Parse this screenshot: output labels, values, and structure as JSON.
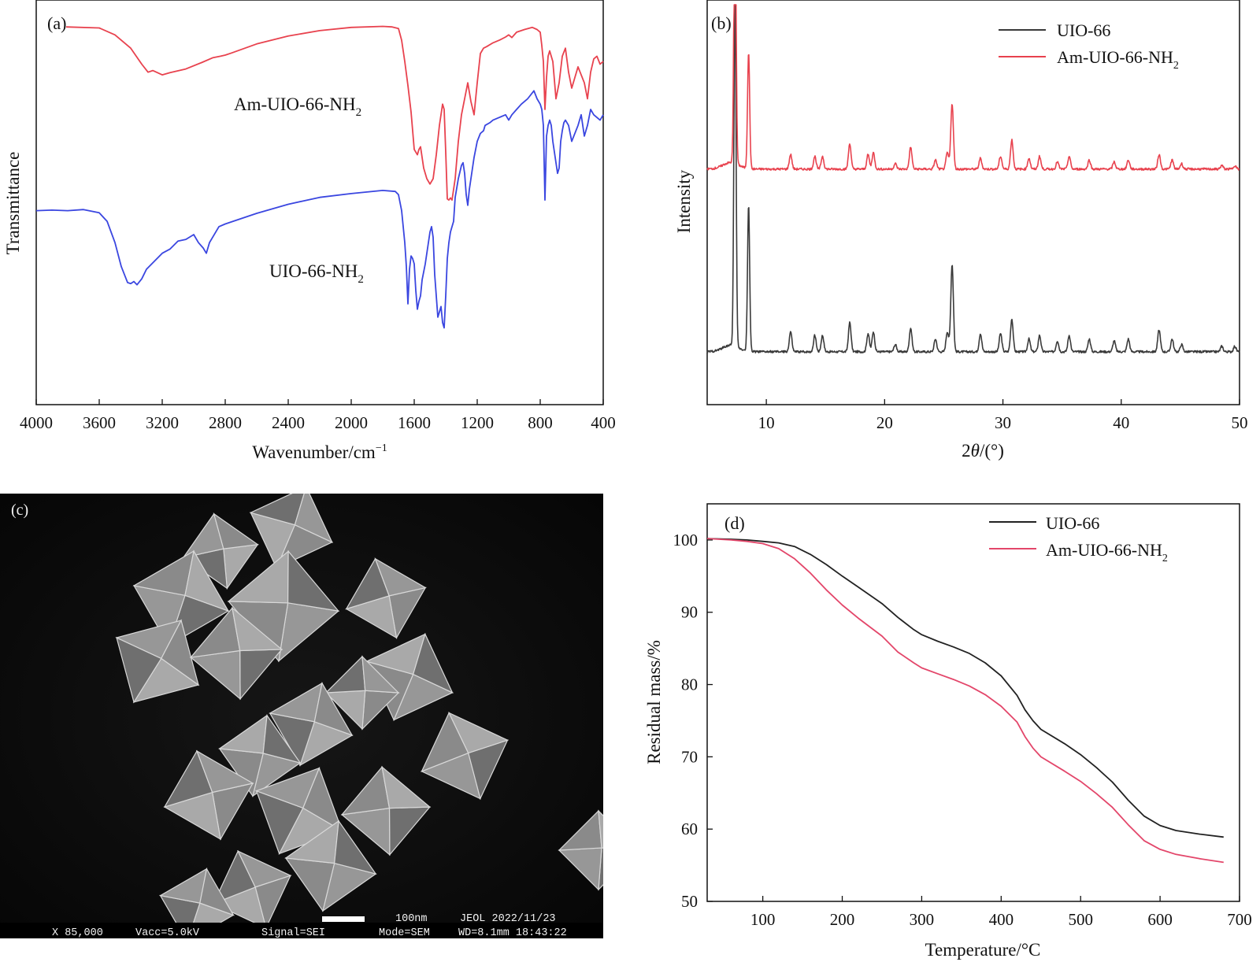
{
  "chart_data": [
    {
      "panel": "(a)",
      "type": "line",
      "xlabel": "Wavenumber/cm",
      "xlabel_sup": "−1",
      "ylabel": "Transmittance",
      "xlim": [
        4000,
        400
      ],
      "xticks": [
        "4000",
        "3600",
        "3200",
        "2800",
        "2400",
        "2000",
        "1600",
        "1200",
        "800",
        "400"
      ],
      "y_ticks_shown": false,
      "series": [
        {
          "name": "Am-UIO-66-NH",
          "name_sub": "2",
          "color": "#e8424e",
          "x": [
            3810,
            3600,
            3500,
            3400,
            3330,
            3290,
            3260,
            3230,
            3200,
            3150,
            3050,
            2950,
            2880,
            2830,
            2800,
            2760,
            2600,
            2400,
            2200,
            2000,
            1800,
            1740,
            1700,
            1680,
            1660,
            1640,
            1620,
            1610,
            1600,
            1590,
            1580,
            1570,
            1560,
            1540,
            1520,
            1500,
            1480,
            1460,
            1440,
            1430,
            1420,
            1410,
            1400,
            1390,
            1380,
            1370,
            1360,
            1350,
            1340,
            1320,
            1300,
            1280,
            1260,
            1240,
            1220,
            1200,
            1180,
            1160,
            1140,
            1100,
            1060,
            1020,
            1000,
            980,
            950,
            900,
            850,
            820,
            800,
            790,
            780,
            770,
            760,
            750,
            740,
            730,
            720,
            700,
            680,
            660,
            640,
            620,
            600,
            560,
            520,
            500,
            480,
            460,
            440,
            420,
            400
          ],
          "y": [
            98.5,
            98.3,
            97,
            94.5,
            91.5,
            90,
            90.3,
            89.9,
            89.5,
            89.9,
            90.6,
            91.8,
            92.7,
            93,
            93.2,
            93.6,
            95.3,
            96.8,
            97.8,
            98.4,
            98.6,
            98.5,
            98.2,
            96,
            92,
            87.5,
            82.5,
            79,
            75.5,
            75,
            74.5,
            75.5,
            76,
            72,
            70,
            69,
            70,
            74.5,
            80,
            82,
            84,
            83,
            75,
            66.2,
            66,
            66.4,
            66,
            68,
            70,
            77,
            82,
            85,
            88,
            84.5,
            82,
            88,
            93.5,
            94.5,
            94.8,
            95.5,
            96,
            96.6,
            97,
            96.5,
            97.5,
            98,
            98.4,
            98,
            97.5,
            95,
            92,
            83,
            89,
            93,
            94,
            93,
            92,
            85,
            88,
            93,
            94.5,
            90,
            87,
            91,
            88,
            85,
            90,
            92.5,
            93,
            91.5,
            92
          ],
          "labels": {
            "name": "Am-UIO-66-NH",
            "sub": "2"
          }
        },
        {
          "name": "UIO-66-NH",
          "name_sub": "2",
          "color": "#3a46e0",
          "x": [
            4000,
            3900,
            3800,
            3700,
            3600,
            3550,
            3500,
            3460,
            3420,
            3400,
            3380,
            3360,
            3330,
            3300,
            3250,
            3200,
            3150,
            3100,
            3050,
            3000,
            2970,
            2940,
            2920,
            2900,
            2880,
            2860,
            2840,
            2800,
            2600,
            2400,
            2200,
            2000,
            1800,
            1720,
            1700,
            1680,
            1660,
            1650,
            1640,
            1630,
            1620,
            1610,
            1600,
            1590,
            1580,
            1570,
            1560,
            1550,
            1530,
            1510,
            1500,
            1490,
            1480,
            1470,
            1450,
            1440,
            1430,
            1420,
            1410,
            1400,
            1390,
            1380,
            1370,
            1360,
            1350,
            1340,
            1320,
            1300,
            1290,
            1280,
            1270,
            1260,
            1250,
            1240,
            1220,
            1200,
            1180,
            1160,
            1150,
            1120,
            1100,
            1060,
            1020,
            1000,
            980,
            950,
            920,
            880,
            840,
            820,
            800,
            790,
            780,
            770,
            760,
            750,
            740,
            730,
            720,
            700,
            690,
            680,
            670,
            660,
            650,
            640,
            620,
            600,
            560,
            540,
            520,
            500,
            480,
            460,
            440,
            420,
            400
          ],
          "y": [
            64,
            64.1,
            64,
            64.2,
            63.6,
            62,
            58,
            53.5,
            50.5,
            50.3,
            50.7,
            50.1,
            51.2,
            53,
            54.5,
            56,
            56.8,
            58.3,
            58.6,
            59.5,
            58,
            57,
            56,
            58,
            59,
            60,
            61,
            61.5,
            63.5,
            65.2,
            66.5,
            67.2,
            67.8,
            67.6,
            67,
            64,
            58,
            53.5,
            46.5,
            53,
            55.5,
            55,
            54,
            49,
            45.5,
            47,
            48,
            51,
            54,
            58,
            60,
            61,
            59,
            52,
            44,
            45,
            46,
            43,
            42,
            48,
            55,
            58,
            60,
            61,
            62,
            66.5,
            70,
            72.5,
            73,
            71,
            67,
            65,
            68,
            70,
            74,
            77,
            78.5,
            79,
            80,
            80.5,
            81,
            81.5,
            82,
            81,
            82,
            83,
            84,
            85,
            86.5,
            85,
            84,
            83,
            80,
            66,
            78,
            80,
            81,
            80,
            77,
            73,
            71,
            72,
            77,
            79,
            80.5,
            81,
            80,
            77,
            80,
            82,
            78,
            80,
            83,
            82,
            81.5,
            81,
            82
          ],
          "labels": {
            "name": "UIO-66-NH",
            "sub": "2"
          }
        }
      ]
    },
    {
      "panel": "(b)",
      "type": "line",
      "xlabel_parts": [
        "2",
        "θ",
        "/(°)"
      ],
      "ylabel": "Intensity",
      "xlim": [
        5,
        50
      ],
      "xticks": [
        "10",
        "20",
        "30",
        "40",
        "50"
      ],
      "y_ticks_shown": false,
      "legend_position": "top-right",
      "peak_positions": [
        7.35,
        8.5,
        12.05,
        14.1,
        14.75,
        17.05,
        18.6,
        19.05,
        20.9,
        22.2,
        24.3,
        25.3,
        25.7,
        28.1,
        29.8,
        30.75,
        32.2,
        33.1,
        34.6,
        35.6,
        37.3,
        39.4,
        40.6,
        43.2,
        44.3,
        45.1,
        48.5,
        49.6
      ],
      "series": [
        {
          "name": "UIO-66",
          "color": "#3a3a3a",
          "baseline": 5,
          "peak_heights": [
            96,
            40,
            5.5,
            4.5,
            4.5,
            8,
            5,
            5.5,
            2,
            6.5,
            3.5,
            5.5,
            24,
            5,
            5,
            9,
            3.5,
            4.5,
            3,
            4.5,
            3.5,
            3,
            3.5,
            6,
            3.5,
            2,
            1.5,
            1.5
          ]
        },
        {
          "name": "Am-UIO-66-NH",
          "name_sub": "2",
          "color": "#e8424e",
          "baseline": 55,
          "peak_heights": [
            76,
            32,
            4,
            3.5,
            3.5,
            7,
            4,
            4.5,
            1.5,
            6,
            2.5,
            4.5,
            18,
            3,
            3.5,
            8,
            3,
            3.5,
            2,
            3.5,
            2.5,
            2,
            2.5,
            4,
            2.5,
            1.5,
            1,
            1
          ]
        }
      ]
    },
    {
      "panel": "(d)",
      "type": "line",
      "xlabel": "Temperature/°C",
      "ylabel": "Residual mass/%",
      "xlim": [
        30,
        700
      ],
      "ylim": [
        50,
        105
      ],
      "xticks": [
        100,
        200,
        300,
        400,
        500,
        600,
        700
      ],
      "yticks": [
        50,
        60,
        70,
        80,
        90,
        100
      ],
      "legend_position": "top-right",
      "series": [
        {
          "name": "UIO-66",
          "color": "#222222",
          "x": [
            30,
            60,
            80,
            100,
            120,
            140,
            160,
            180,
            200,
            220,
            250,
            270,
            290,
            300,
            320,
            340,
            360,
            380,
            400,
            420,
            430,
            440,
            450,
            480,
            500,
            520,
            540,
            560,
            580,
            600,
            620,
            650,
            680
          ],
          "y": [
            100.2,
            100.1,
            100,
            99.8,
            99.6,
            99.1,
            98,
            96.6,
            95,
            93.5,
            91.2,
            89.3,
            87.6,
            86.9,
            86,
            85.2,
            84.3,
            83,
            81.2,
            78.5,
            76.5,
            75,
            73.8,
            71.8,
            70.3,
            68.5,
            66.5,
            64,
            61.8,
            60.5,
            59.8,
            59.3,
            58.9
          ],
          "labels": {
            "name": "UIO-66"
          }
        },
        {
          "name": "Am-UIO-66-NH",
          "name_sub": "2",
          "color": "#e3466a",
          "x": [
            30,
            60,
            80,
            100,
            120,
            140,
            160,
            180,
            200,
            220,
            250,
            270,
            290,
            300,
            320,
            340,
            360,
            380,
            400,
            420,
            430,
            440,
            450,
            480,
            500,
            520,
            540,
            560,
            580,
            600,
            620,
            650,
            680
          ],
          "y": [
            100.2,
            100,
            99.8,
            99.5,
            98.8,
            97.4,
            95.4,
            93.1,
            91,
            89.2,
            86.7,
            84.5,
            83,
            82.3,
            81.5,
            80.7,
            79.8,
            78.6,
            77,
            74.8,
            72.8,
            71.2,
            70,
            68,
            66.6,
            64.9,
            63,
            60.6,
            58.4,
            57.2,
            56.5,
            55.9,
            55.4
          ],
          "labels": {
            "name": "Am-UIO-66-NH",
            "sub": "2"
          }
        }
      ]
    }
  ],
  "panel_c": {
    "label": "(c)",
    "scale_label": "100nm",
    "banner": "JEOL 2022/11/23",
    "footer": [
      "X 85,000",
      "Vacc=5.0kV",
      "Signal=SEI",
      "Mode=SEM",
      "WD=8.1mm 18:43:22"
    ]
  }
}
